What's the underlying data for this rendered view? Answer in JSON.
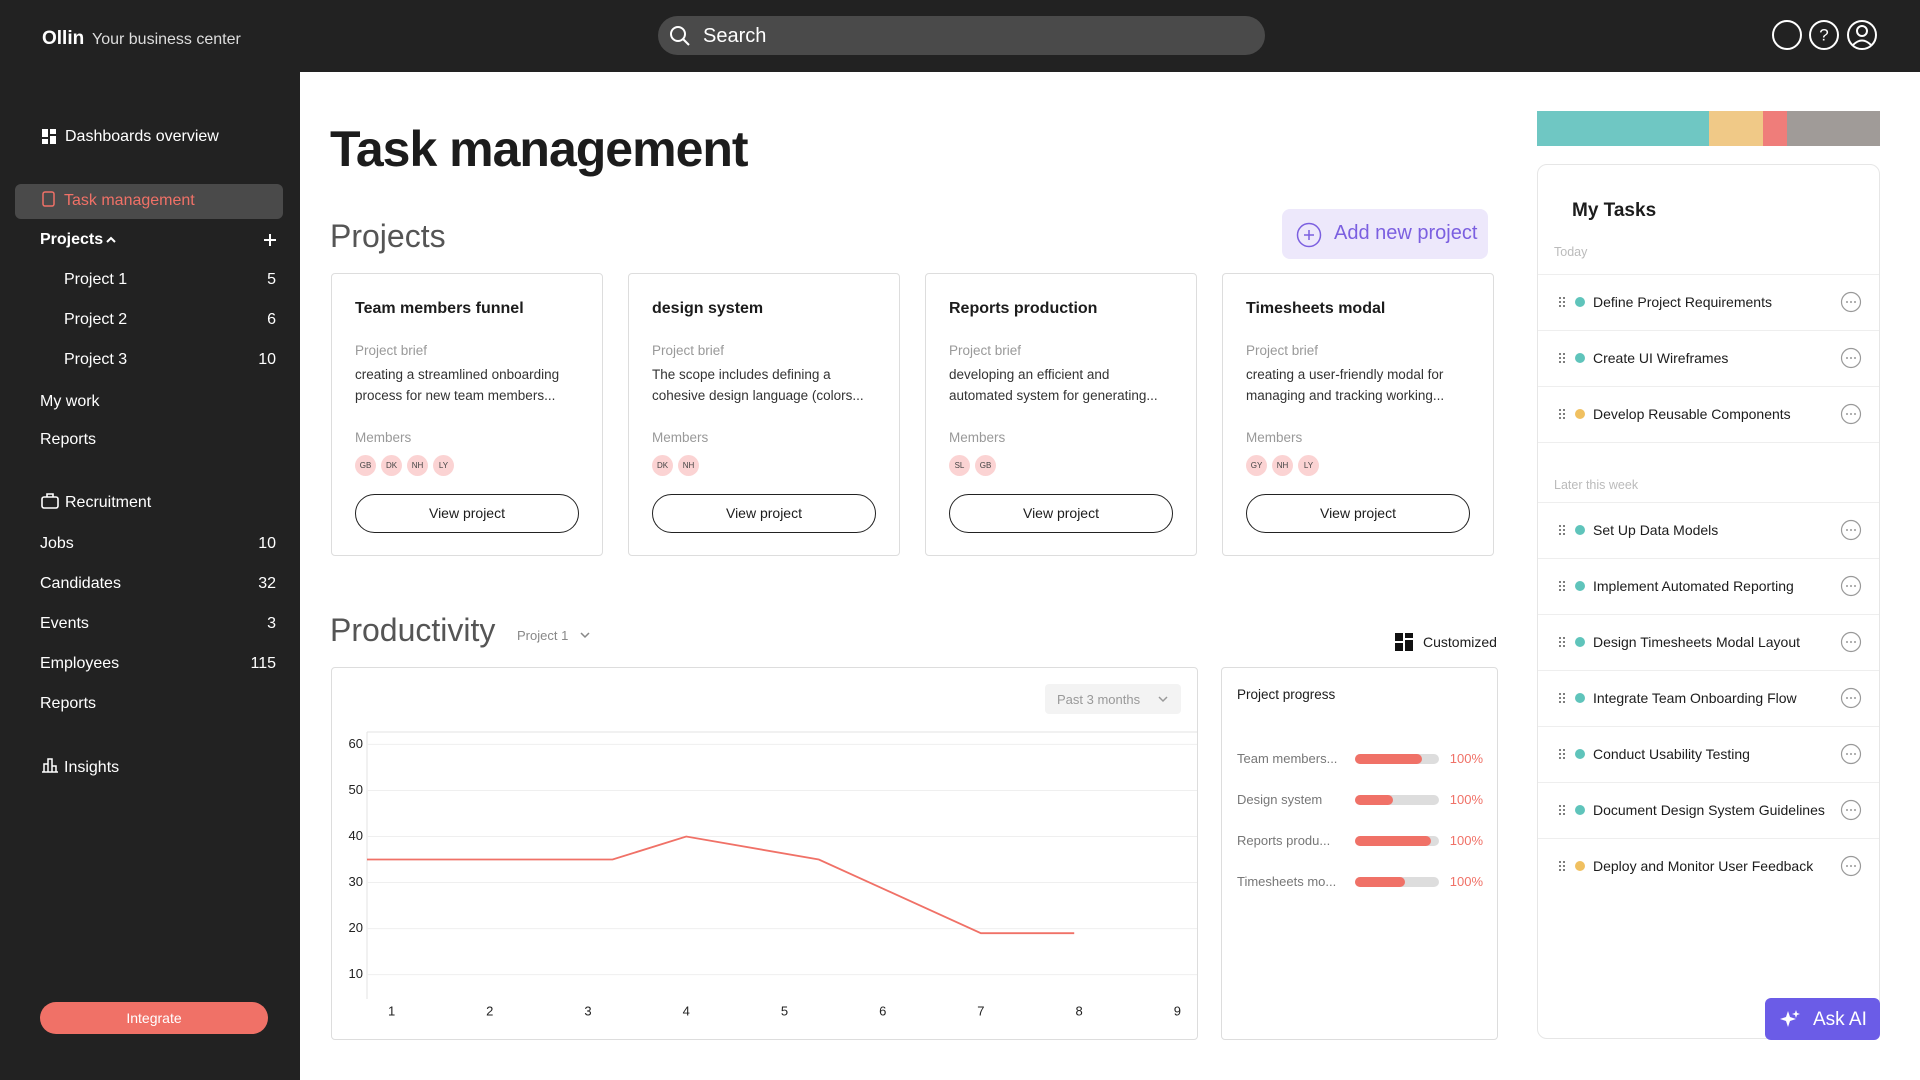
{
  "header": {
    "brand": "Ollin",
    "tagline": "Your business center",
    "search": "Search"
  },
  "sidebar": {
    "dashboards": "Dashboards overview",
    "active": "Task management",
    "projects_label": "Projects",
    "projects": [
      {
        "name": "Project 1",
        "count": 5
      },
      {
        "name": "Project 2",
        "count": 6
      },
      {
        "name": "Project 3",
        "count": 10
      }
    ],
    "my_work": "My work",
    "reports": "Reports",
    "recruitment": "Recruitment",
    "recruitment_items": [
      {
        "name": "Jobs",
        "count": 10
      },
      {
        "name": "Candidates",
        "count": 32
      },
      {
        "name": "Events",
        "count": 3
      },
      {
        "name": "Employees",
        "count": 115
      },
      {
        "name": "Reports"
      }
    ],
    "insights": "Insights",
    "integrate": "Integrate"
  },
  "main": {
    "title": "Task management",
    "projects_heading": "Projects",
    "add_project": "Add new project",
    "brief_label": "Project brief",
    "members_label": "Members",
    "view_label": "View project",
    "projects": [
      {
        "title": "Team members funnel",
        "brief": [
          "creating a streamlined onboarding",
          "process for new team members..."
        ],
        "members": [
          "GB",
          "DK",
          "NH",
          "LY"
        ]
      },
      {
        "title": "design system",
        "brief": [
          "The scope includes defining a",
          "cohesive design language (colors..."
        ],
        "members": [
          "DK",
          "NH"
        ]
      },
      {
        "title": "Reports production",
        "brief": [
          "developing an efficient and",
          "automated system for generating..."
        ],
        "members": [
          "SL",
          "GB"
        ]
      },
      {
        "title": "Timesheets modal",
        "brief": [
          "creating a user-friendly modal for",
          "managing and tracking working..."
        ],
        "members": [
          "GY",
          "NH",
          "LY"
        ]
      }
    ],
    "productivity": {
      "heading": "Productivity",
      "project_filter": "Project 1",
      "view": "Customized",
      "period": "Past 3 months"
    },
    "progress": {
      "title": "Project progress",
      "rows": [
        {
          "label": "Team members...",
          "percent": "100%",
          "fill": 80
        },
        {
          "label": "Design system",
          "percent": "100%",
          "fill": 45
        },
        {
          "label": "Reports produ...",
          "percent": "100%",
          "fill": 90
        },
        {
          "label": "Timesheets mo...",
          "percent": "100%",
          "fill": 60
        }
      ]
    }
  },
  "tasks": {
    "status_bar": [
      {
        "color": "#6fc7c3",
        "value": 50
      },
      {
        "color": "#f0c987",
        "value": 16
      },
      {
        "color": "#ef7d7a",
        "value": 7
      },
      {
        "color": "#a09b98",
        "value": 27
      }
    ],
    "title": "My Tasks",
    "today_label": "Today",
    "later_label": "Later this week",
    "today": [
      {
        "name": "Define Project Requirements",
        "color": "#5fc4bb"
      },
      {
        "name": "Create UI Wireframes",
        "color": "#5fc4bb"
      },
      {
        "name": "Develop Reusable Components",
        "color": "#f0c060"
      }
    ],
    "later": [
      {
        "name": "Set Up Data Models",
        "color": "#5fc4bb"
      },
      {
        "name": "Implement Automated Reporting",
        "color": "#5fc4bb"
      },
      {
        "name": "Design Timesheets Modal Layout",
        "color": "#5fc4bb"
      },
      {
        "name": "Integrate Team Onboarding Flow",
        "color": "#5fc4bb"
      },
      {
        "name": "Conduct Usability Testing",
        "color": "#5fc4bb"
      },
      {
        "name": "Document Design System Guidelines",
        "color": "#5fc4bb"
      },
      {
        "name": "Deploy and Monitor User Feedback",
        "color": "#f0c060"
      }
    ],
    "ask_ai": "Ask AI"
  },
  "chart_data": {
    "type": "line",
    "x": [
      0.75,
      3.25,
      4,
      5.35,
      7,
      7.95
    ],
    "values": [
      35,
      35,
      40,
      35,
      19,
      19
    ],
    "color": "#f07167",
    "xlim": [
      0.75,
      9.2
    ],
    "ylim": [
      4.7,
      62.7
    ],
    "xticks": [
      1,
      2,
      3,
      4,
      5,
      6,
      7,
      8,
      9
    ],
    "yticks": [
      10,
      20,
      30,
      40,
      50,
      60
    ],
    "grid": true
  }
}
